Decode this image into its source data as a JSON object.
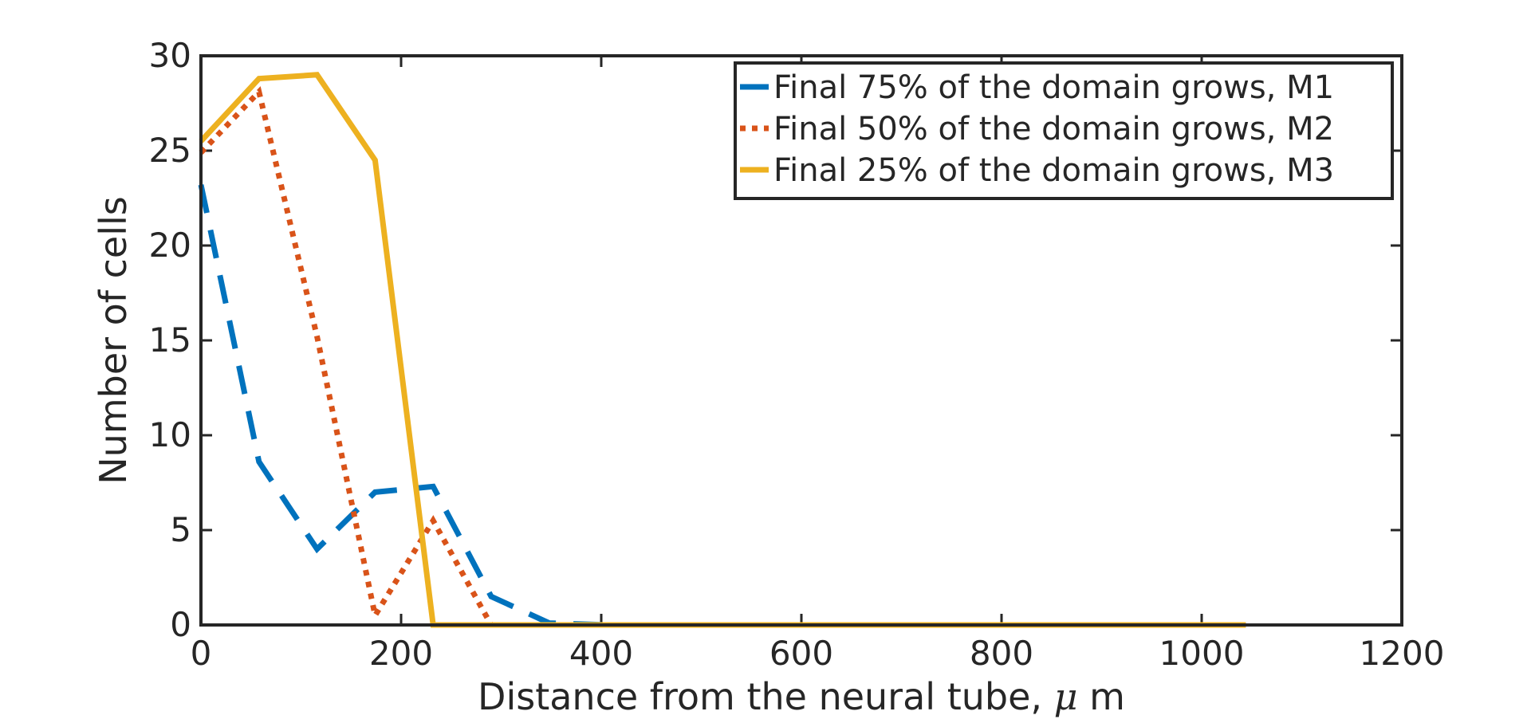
{
  "chart_data": {
    "type": "line",
    "title": "",
    "xlabel": "Distance from the neural tube, ",
    "xlabel_symbol": "μ",
    "xlabel_unit": " m",
    "ylabel": "Number of cells",
    "xlim": [
      0,
      1200
    ],
    "ylim": [
      0,
      30
    ],
    "xticks": [
      0,
      200,
      400,
      600,
      800,
      1000,
      1200
    ],
    "yticks": [
      0,
      5,
      10,
      15,
      20,
      25,
      30
    ],
    "grid": false,
    "legend_position": "top-right",
    "series": [
      {
        "name": "Final 75% of the domain grows, M1",
        "color": "#0072BD",
        "style": "dashed",
        "x": [
          0,
          58,
          116,
          174,
          232,
          290,
          348,
          406,
          464,
          522,
          580,
          638,
          696,
          754,
          812,
          870,
          928,
          986,
          1044
        ],
        "y": [
          23.2,
          8.6,
          4.0,
          7.0,
          7.3,
          1.5,
          0.1,
          0,
          0,
          0,
          0,
          0,
          0,
          0,
          0,
          0,
          0,
          0,
          0
        ]
      },
      {
        "name": "Final 50% of the domain grows, M2",
        "color": "#D95319",
        "style": "dotted",
        "x": [
          0,
          58,
          116,
          174,
          232,
          290,
          348,
          406,
          464,
          522,
          580,
          638,
          696,
          754,
          812,
          870,
          928,
          986,
          1044
        ],
        "y": [
          24.9,
          28.1,
          15.2,
          0.5,
          5.5,
          0,
          0,
          0,
          0,
          0,
          0,
          0,
          0,
          0,
          0,
          0,
          0,
          0,
          0
        ]
      },
      {
        "name": "Final 25% of the domain grows, M3",
        "color": "#EDB120",
        "style": "solid",
        "x": [
          0,
          58,
          116,
          174,
          232,
          290,
          348,
          406,
          464,
          522,
          580,
          638,
          696,
          754,
          812,
          870,
          928,
          986,
          1044
        ],
        "y": [
          25.5,
          28.8,
          29.0,
          24.5,
          0,
          0,
          0,
          0,
          0,
          0,
          0,
          0,
          0,
          0,
          0,
          0,
          0,
          0,
          0
        ]
      }
    ]
  }
}
